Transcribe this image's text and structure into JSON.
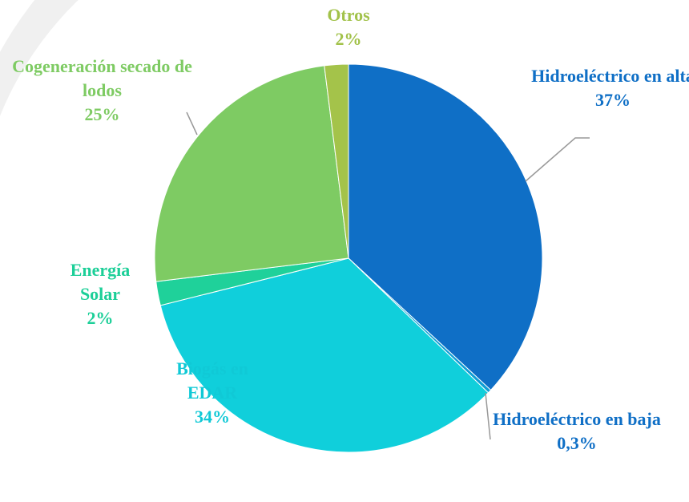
{
  "chart_data": {
    "type": "pie",
    "categories": [
      "Hidroeléctrico en alta",
      "Hidroeléctrico en baja",
      "Biogás en EDAR",
      "Energía Solar",
      "Cogeneración secado de lodos",
      "Otros"
    ],
    "values": [
      37,
      0.3,
      34,
      2,
      25,
      2
    ],
    "value_labels": [
      "37%",
      "0,3%",
      "34%",
      "2%",
      "25%",
      "2%"
    ],
    "colors": [
      "#0f6fc6",
      "#0f9ed5",
      "#10cfdb",
      "#1fd19a",
      "#7ecb63",
      "#a4c34a"
    ],
    "label_colors": [
      "#0f6fc6",
      "#0f6fc6",
      "#10c9d6",
      "#1ccf98",
      "#7ecb63",
      "#a2c24a"
    ]
  }
}
